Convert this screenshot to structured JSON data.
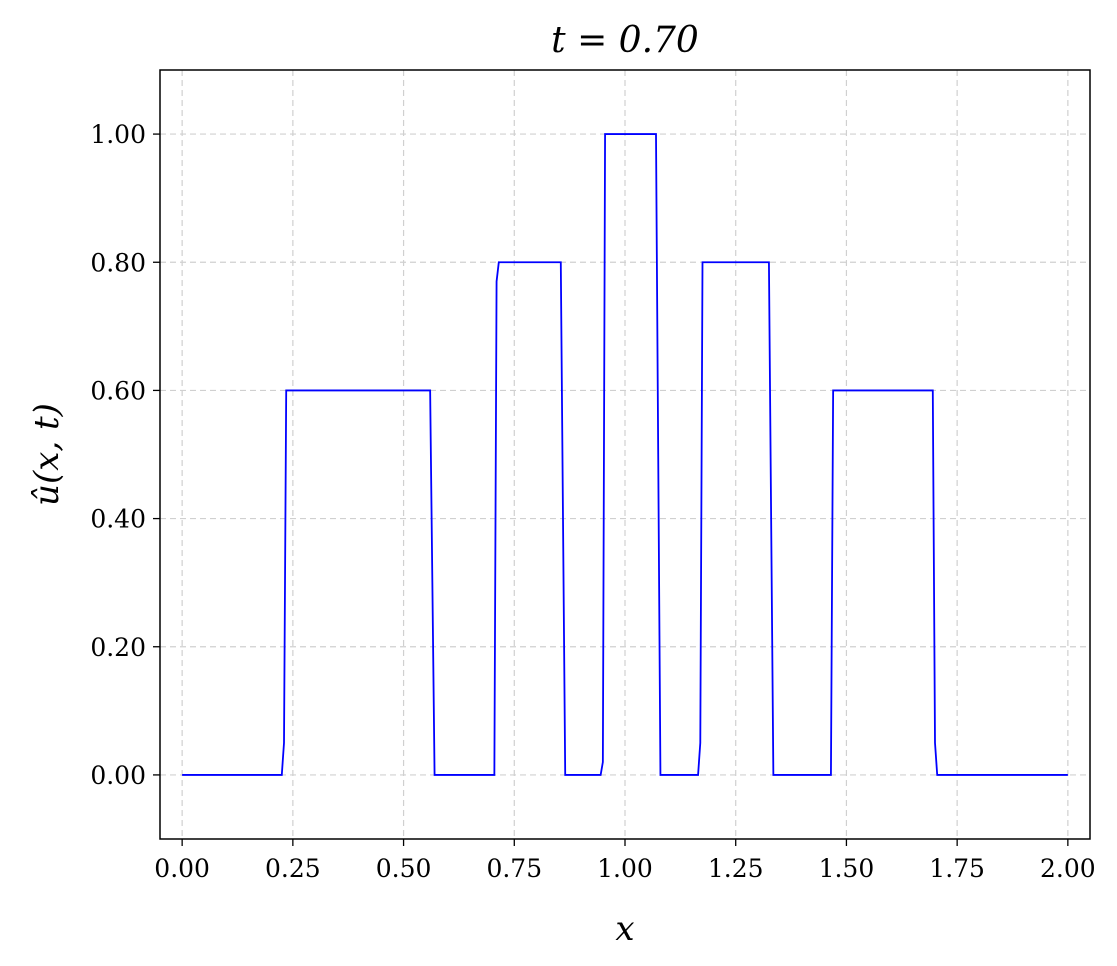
{
  "chart_data": {
    "type": "line",
    "title": "t = 0.70",
    "xlabel": "x",
    "ylabel": "û(x, t)",
    "xlim": [
      -0.05,
      2.05
    ],
    "ylim": [
      -0.1,
      1.1
    ],
    "xticks": [
      0.0,
      0.25,
      0.5,
      0.75,
      1.0,
      1.25,
      1.5,
      1.75,
      2.0
    ],
    "xtick_labels": [
      "0.00",
      "0.25",
      "0.50",
      "0.75",
      "1.00",
      "1.25",
      "1.50",
      "1.75",
      "2.00"
    ],
    "yticks": [
      0.0,
      0.2,
      0.4,
      0.6,
      0.8,
      1.0
    ],
    "ytick_labels": [
      "0.00",
      "0.20",
      "0.40",
      "0.60",
      "0.80",
      "1.00"
    ],
    "grid": true,
    "grid_style": "dashed",
    "series": [
      {
        "color": "#0000ff",
        "x": [
          0.0,
          0.225,
          0.23,
          0.235,
          0.56,
          0.565,
          0.57,
          0.705,
          0.71,
          0.715,
          0.855,
          0.86,
          0.865,
          0.945,
          0.95,
          0.955,
          1.07,
          1.075,
          1.08,
          1.165,
          1.17,
          1.175,
          1.325,
          1.33,
          1.335,
          1.465,
          1.47,
          1.695,
          1.7,
          1.705,
          2.0
        ],
        "y": [
          0.0,
          0.0,
          0.05,
          0.6,
          0.6,
          0.3,
          0.0,
          0.0,
          0.77,
          0.8,
          0.8,
          0.4,
          0.0,
          0.0,
          0.02,
          1.0,
          1.0,
          0.5,
          0.0,
          0.0,
          0.05,
          0.8,
          0.8,
          0.4,
          0.0,
          0.0,
          0.6,
          0.6,
          0.05,
          0.0,
          0.0
        ]
      }
    ]
  }
}
